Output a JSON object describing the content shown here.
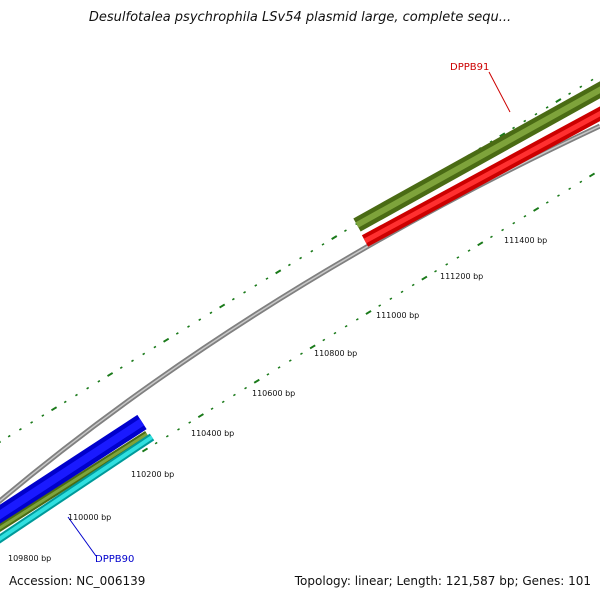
{
  "title": "Desulfotalea psychrophila LSv54 plasmid large, complete sequ...",
  "footer": {
    "accession": "Accession: NC_006139",
    "summary": "Topology: linear; Length: 121,587 bp; Genes: 101"
  },
  "colors": {
    "backbone": "#808080",
    "tick": "#1a7a1a",
    "olive_feature": "#6b8e23",
    "red_feature": "#ff0000",
    "blue_feature": "#0000ff",
    "cyan_feature": "#00c8c8"
  },
  "scale_labels": [
    "109800 bp",
    "110000 bp",
    "110200 bp",
    "110400 bp",
    "110600 bp",
    "110800 bp",
    "111000 bp",
    "111200 bp",
    "111400 bp"
  ],
  "features": [
    {
      "name": "DPPB91",
      "color": "#cc0000"
    },
    {
      "name": "DPPB90",
      "color": "#0000cc"
    }
  ]
}
